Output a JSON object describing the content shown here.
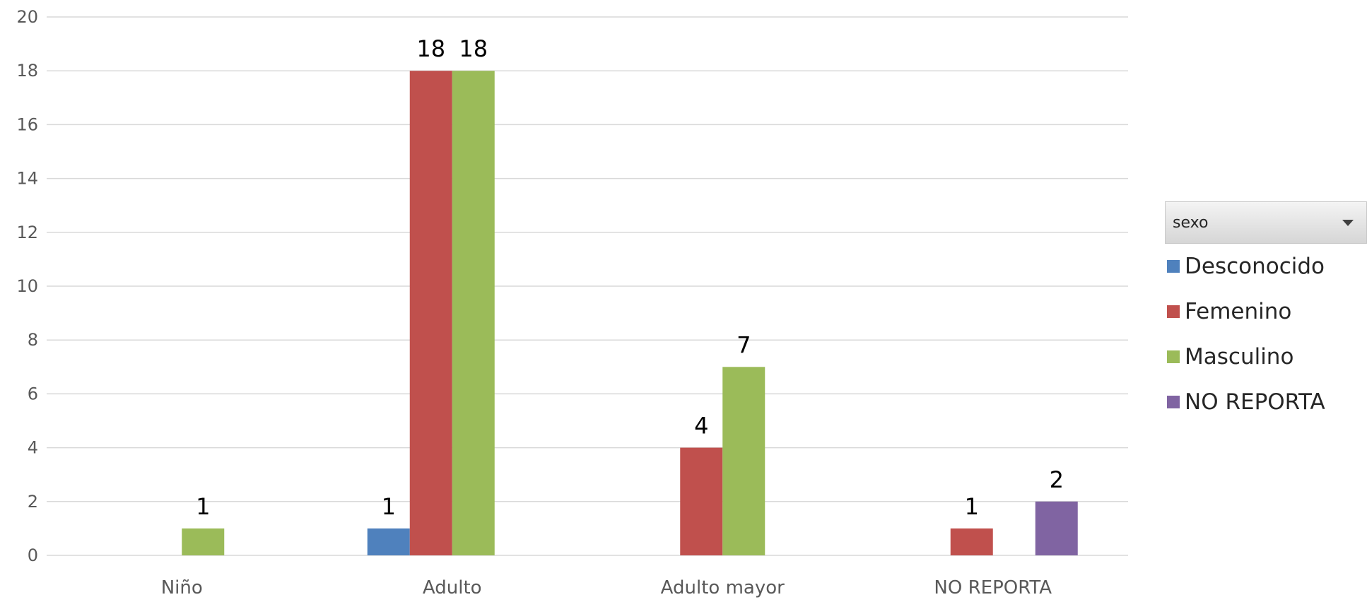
{
  "chart_data": {
    "type": "bar",
    "categories": [
      "Niño",
      "Adulto",
      "Adulto mayor",
      "NO REPORTA"
    ],
    "series": [
      {
        "name": "Desconocido",
        "color": "#4f81bd",
        "values": [
          null,
          1,
          null,
          null
        ]
      },
      {
        "name": "Femenino",
        "color": "#c0504d",
        "values": [
          null,
          18,
          4,
          1
        ]
      },
      {
        "name": "Masculino",
        "color": "#9bbb59",
        "values": [
          1,
          18,
          7,
          null
        ]
      },
      {
        "name": "NO REPORTA",
        "color": "#8064a2",
        "values": [
          null,
          null,
          null,
          2
        ]
      }
    ],
    "ylim": [
      0,
      20
    ],
    "yticks": [
      0,
      2,
      4,
      6,
      8,
      10,
      12,
      14,
      16,
      18,
      20
    ],
    "grid": true,
    "data_labels": true,
    "legend": {
      "title": "sexo",
      "position": "right",
      "has_filter_dropdown": true
    }
  }
}
